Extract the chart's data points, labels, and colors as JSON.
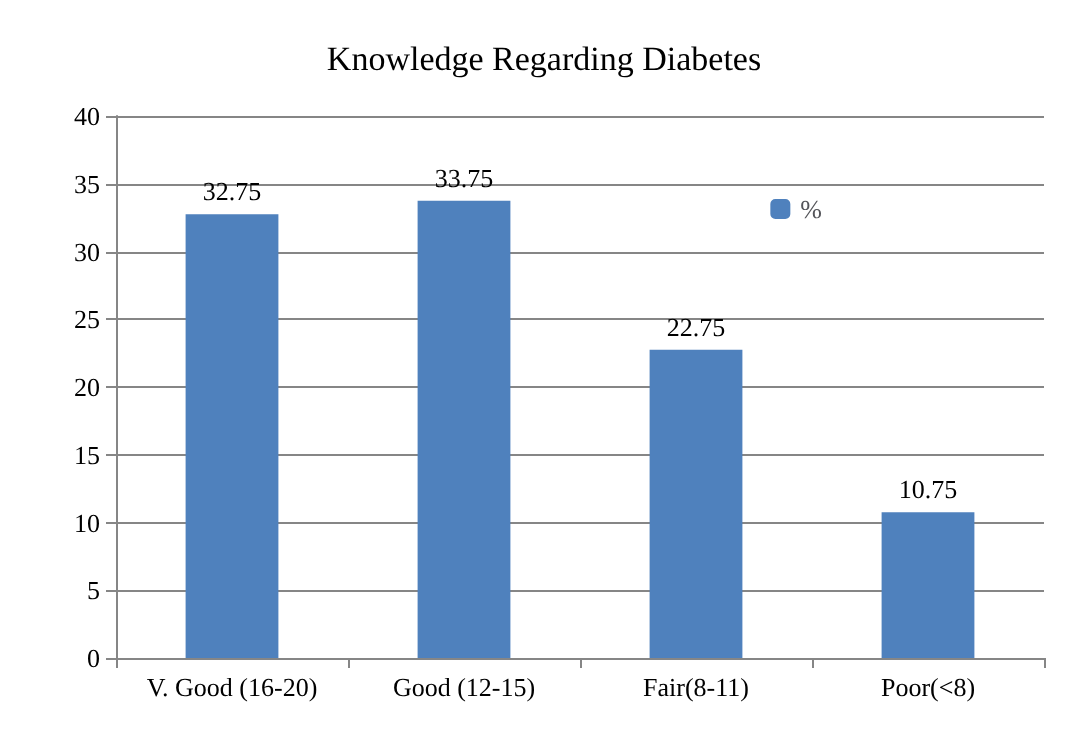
{
  "chart_data": {
    "type": "bar",
    "title": "Knowledge Regarding Diabetes",
    "categories": [
      "V. Good (16-20)",
      "Good (12-15)",
      "Fair(8-11)",
      "Poor(<8)"
    ],
    "series": [
      {
        "name": "%",
        "color": "#4f81bd",
        "values": [
          32.75,
          33.75,
          22.75,
          10.75
        ]
      }
    ],
    "ylim": [
      0,
      40
    ],
    "yticks": [
      0,
      5,
      10,
      15,
      20,
      25,
      30,
      35,
      40
    ],
    "grid": "y",
    "legend": "top right",
    "data_labels": true
  }
}
